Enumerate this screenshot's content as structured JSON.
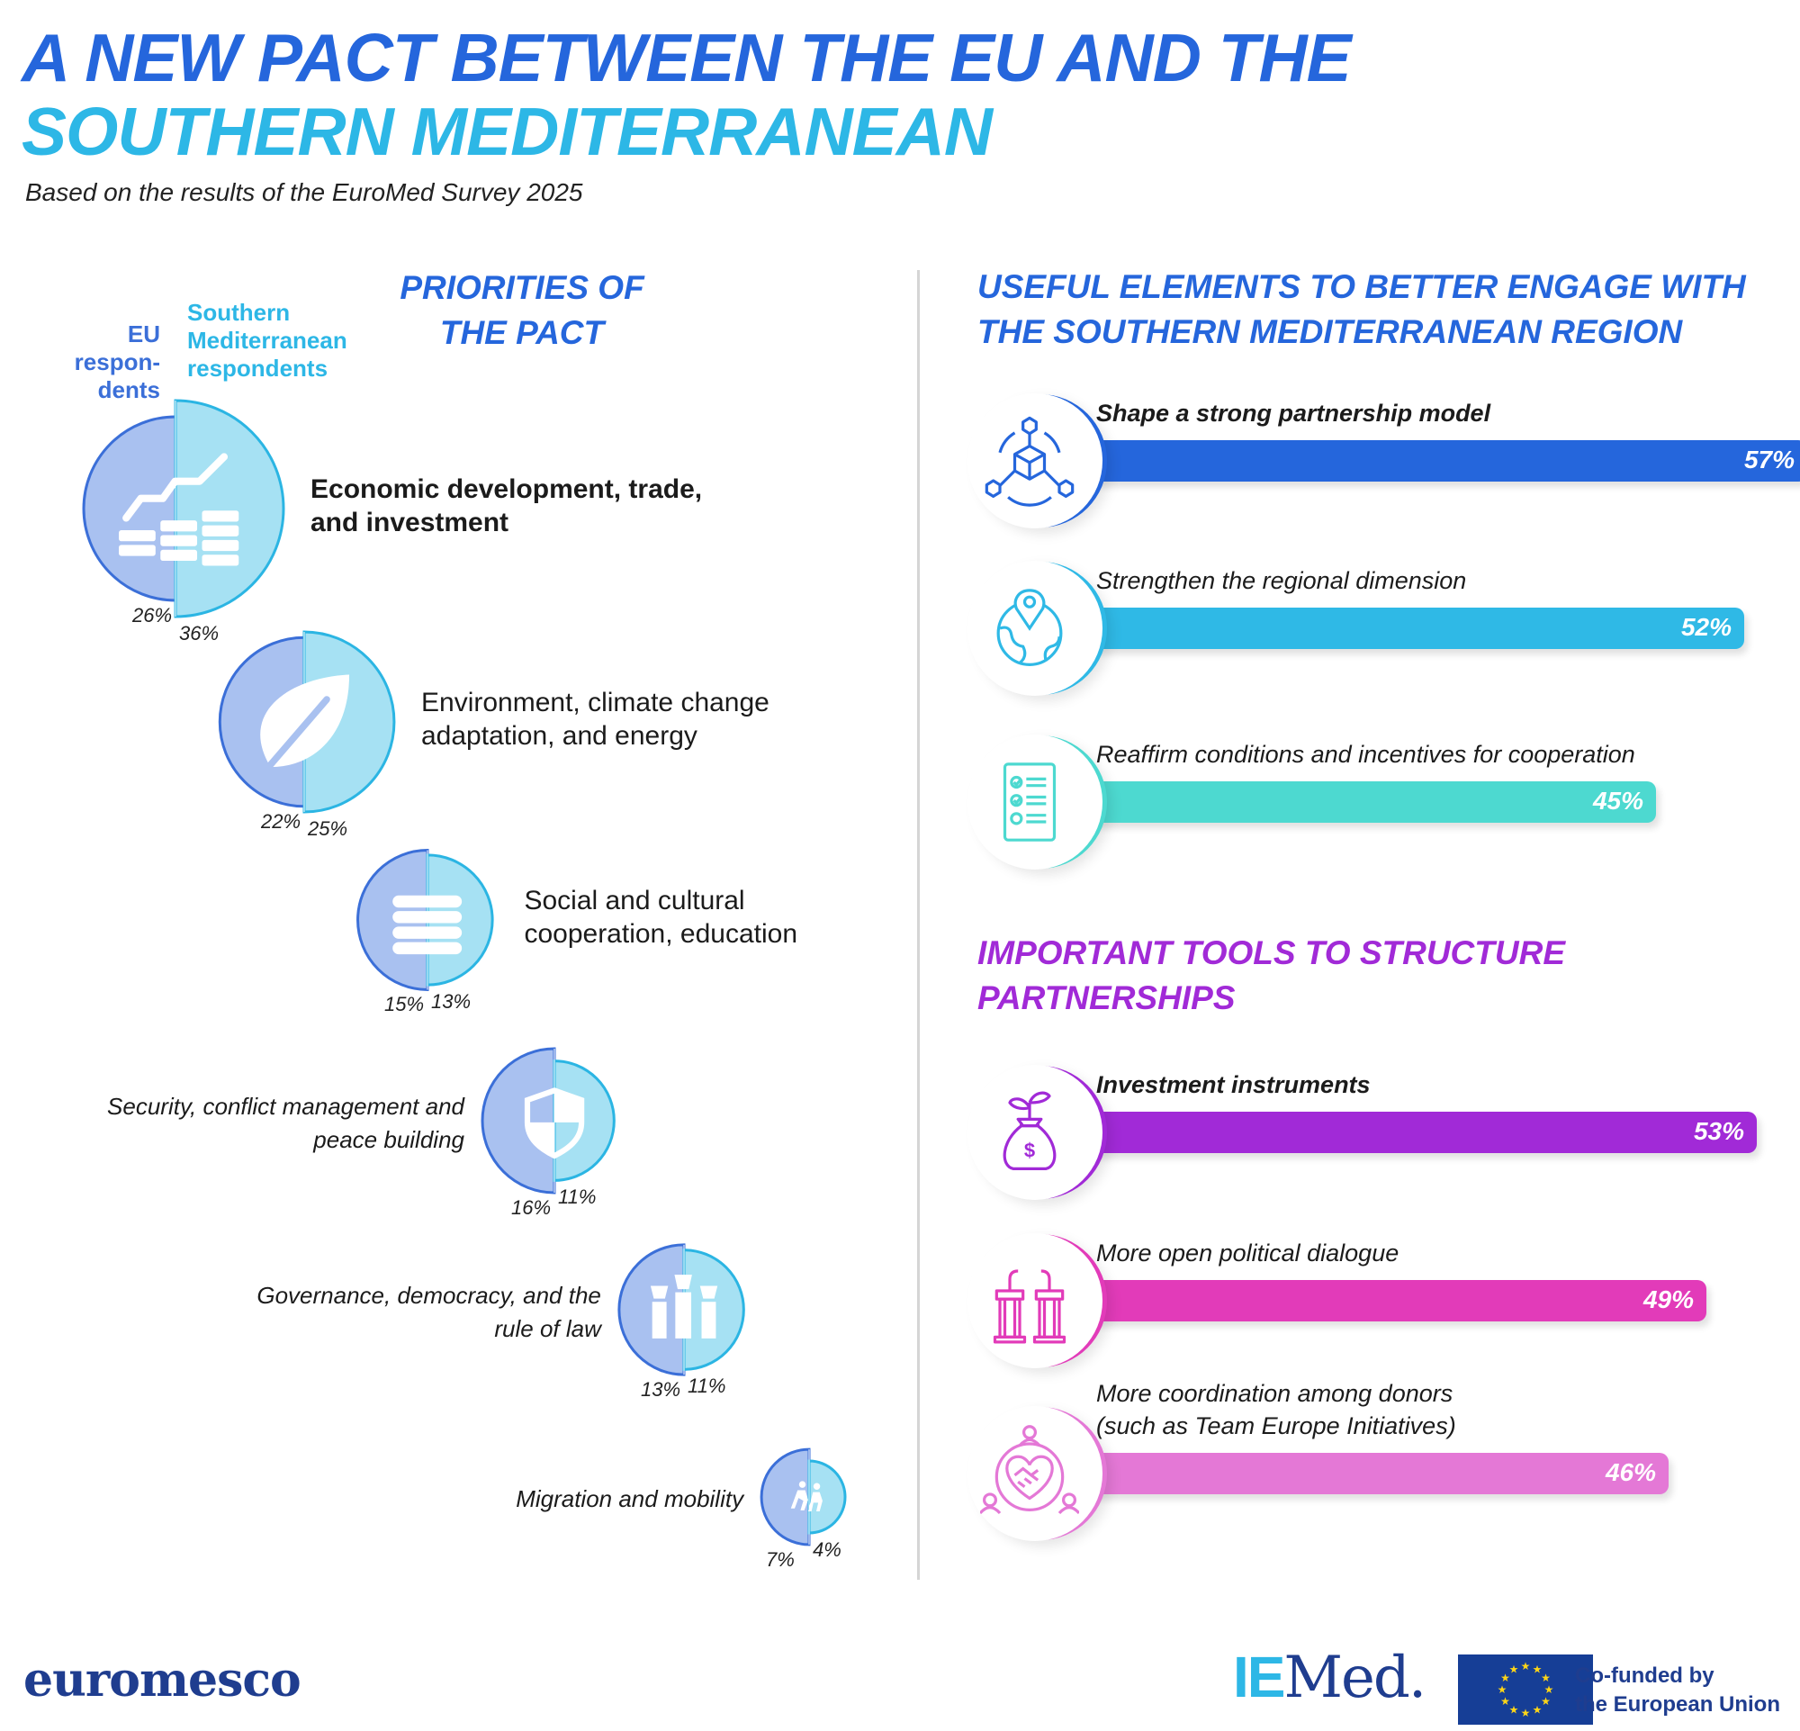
{
  "header": {
    "title_line1": "A NEW PACT BETWEEN THE EU AND THE",
    "title_line2": "SOUTHERN MEDITERRANEAN",
    "subtitle": "Based on the results of the EuroMed Survey 2025"
  },
  "priorities": {
    "title_line1": "PRIORITIES OF",
    "title_line2": "THE PACT",
    "legend_eu": "EU respon- dents",
    "legend_sm": "Southern Mediterranean respondents"
  },
  "useful": {
    "title_line1": "USEFUL ELEMENTS TO BETTER ENGAGE WITH",
    "title_line2": "THE SOUTHERN MEDITERRANEAN REGION"
  },
  "tools": {
    "title_line1": "IMPORTANT TOOLS TO STRUCTURE",
    "title_line2": "PARTNERSHIPS"
  },
  "colors": {
    "title_blue": "#2566dc",
    "title_cyan": "#2db7e6",
    "eu_fill": "#a9c1f0",
    "eu_stroke": "#3b6fd8",
    "sm_fill": "#a6e1f3",
    "sm_stroke": "#2bb5e3",
    "purple": "#a12ad7",
    "bar_blue": "#2566dc",
    "bar_cyan": "#2fb9e6",
    "bar_teal": "#4dd9d0",
    "bar_purple": "#a12ad7",
    "bar_magenta": "#e23bb9",
    "bar_pink": "#e478d6"
  },
  "chart_data": [
    {
      "type": "bar",
      "title": "PRIORITIES OF THE PACT",
      "categories": [
        "Economic development, trade, and investment",
        "Environment, climate change adaptation, and energy",
        "Social and cultural cooperation, education",
        "Security, conflict management and peace building",
        "Governance, democracy, and the rule of law",
        "Migration and mobility"
      ],
      "series": [
        {
          "name": "EU respondents",
          "values": [
            26,
            22,
            15,
            16,
            13,
            7
          ]
        },
        {
          "name": "Southern Mediterranean respondents",
          "values": [
            36,
            25,
            13,
            11,
            11,
            4
          ]
        }
      ],
      "value_labels": {
        "eu": [
          "26%",
          "22%",
          "15%",
          "16%",
          "13%",
          "7%"
        ],
        "sm": [
          "36%",
          "25%",
          "13%",
          "11%",
          "11%",
          "4%"
        ]
      },
      "icons": [
        "growth-chart-icon",
        "leaf-icon",
        "books-icon",
        "shield-icon",
        "raised-hands-icon",
        "migration-icon"
      ]
    },
    {
      "type": "bar",
      "title": "USEFUL ELEMENTS TO BETTER ENGAGE WITH THE SOUTHERN MEDITERRANEAN REGION",
      "categories": [
        "Shape a strong partnership model",
        "Strengthen the regional dimension",
        "Reaffirm conditions and incentives for cooperation"
      ],
      "values": [
        57,
        52,
        45
      ],
      "value_labels": [
        "57%",
        "52%",
        "45%"
      ],
      "icons": [
        "network-cube-icon",
        "globe-pin-icon",
        "checklist-icon"
      ]
    },
    {
      "type": "bar",
      "title": "IMPORTANT TOOLS TO STRUCTURE PARTNERSHIPS",
      "categories": [
        "Investment instruments",
        "More open political dialogue",
        "More coordination among donors (such as Team Europe Initiatives)"
      ],
      "category_lines": [
        [
          "Investment instruments"
        ],
        [
          "More open political dialogue"
        ],
        [
          "More coordination among donors",
          "(such as Team Europe Initiatives)"
        ]
      ],
      "values": [
        53,
        49,
        46
      ],
      "value_labels": [
        "53%",
        "49%",
        "46%"
      ],
      "icons": [
        "money-bag-sprout-icon",
        "podiums-icon",
        "handshake-heart-icon"
      ]
    }
  ],
  "footer": {
    "euromesco": "euromesco",
    "iemed_ie": "IE",
    "iemed_med": "Med.",
    "cofunded_line1": "Co-funded by",
    "cofunded_line2": "the European Union"
  }
}
